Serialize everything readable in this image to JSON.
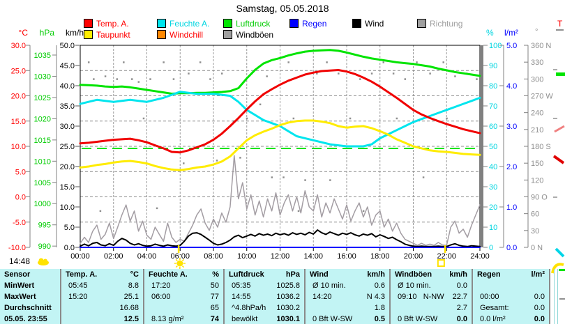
{
  "title": "Samstag, 05.05.2018",
  "footer": {
    "time": "14:48"
  },
  "legend": {
    "row1": [
      {
        "label": "Temp. A.",
        "box": "#ff0000",
        "text": "#ff0000"
      },
      {
        "label": "Feuchte A.",
        "box": "#00e5ee",
        "text": "#00d5e0"
      },
      {
        "label": "Luftdruck",
        "box": "#00e400",
        "text": "#00cc00"
      },
      {
        "label": "Regen",
        "box": "#0000ff",
        "text": "#0000ff"
      },
      {
        "label": "Wind",
        "box": "#000000",
        "text": "#000000"
      },
      {
        "label": "Richtung",
        "box": "#a0a0a0",
        "text": "#a0a0a0"
      }
    ],
    "row2": [
      {
        "label": "Taupunkt",
        "box": "#ffee00",
        "text": "#ff0000"
      },
      {
        "label": "Windchill",
        "box": "#ff8800",
        "text": "#ff0000"
      },
      {
        "label": "Windböen",
        "box": "#a0a0a0",
        "text": "#000000"
      }
    ]
  },
  "axes": {
    "temp": {
      "header": "°C",
      "color": "#ff0000",
      "range": [
        -10,
        30
      ],
      "tick_values": [
        30,
        25,
        20,
        15,
        10,
        5,
        0,
        -5,
        -10
      ],
      "ticks": [
        "30.0",
        "25.0",
        "20.0",
        "15.0",
        "10.0",
        "5.0",
        "0.0",
        "-5.0",
        "-10.0"
      ]
    },
    "pressure": {
      "header": "hPa",
      "color": "#00cc00",
      "range": [
        989.7,
        1037.3
      ],
      "tick_values": [
        1035,
        1030,
        1025,
        1020,
        1015,
        1010,
        1005,
        1000,
        995,
        990
      ],
      "ticks": [
        "1035",
        "1030",
        "1025",
        "1020",
        "1015",
        "1010",
        "1005",
        "1000",
        "995",
        "990"
      ]
    },
    "wind": {
      "header": "km/h",
      "color": "#000000",
      "range": [
        0,
        50
      ],
      "tick_values": [
        50,
        45,
        40,
        35,
        30,
        25,
        20,
        15,
        10,
        5,
        0
      ],
      "ticks": [
        "50.0",
        "45.0",
        "40.0",
        "35.0",
        "30.0",
        "25.0",
        "20.0",
        "15.0",
        "10.0",
        "5.0",
        "0.0"
      ]
    },
    "humidity": {
      "header": "%",
      "color": "#00d5e0",
      "range": [
        0,
        100
      ],
      "tick_values": [
        100,
        90,
        80,
        70,
        60,
        50,
        40,
        30,
        20,
        10,
        0
      ],
      "ticks": [
        "100",
        "90",
        "80",
        "70",
        "60",
        "50",
        "40",
        "30",
        "20",
        "10",
        "0"
      ]
    },
    "rain": {
      "header": "l/m²",
      "color": "#0000ff",
      "range": [
        0,
        5
      ],
      "tick_values": [
        5,
        4,
        3,
        2,
        1,
        0
      ],
      "ticks": [
        "5.0",
        "4.0",
        "3.0",
        "2.0",
        "1.0",
        "0.0"
      ]
    },
    "direction": {
      "header": "°",
      "color": "#8f8f8f",
      "range": [
        0,
        360
      ],
      "tick_values": [
        360,
        330,
        300,
        270,
        240,
        210,
        180,
        150,
        120,
        90,
        60,
        30,
        0
      ],
      "ticks": [
        "360 N",
        "330",
        "300",
        "270 W",
        "240",
        "210",
        "180 S",
        "150",
        "120",
        "90  O",
        "60",
        "30",
        "0  N"
      ]
    },
    "time": {
      "tick_values": [
        0,
        2,
        4,
        6,
        8,
        10,
        12,
        14,
        16,
        18,
        20,
        22,
        24
      ],
      "ticks": [
        "00:00",
        "02:00",
        "04:00",
        "06:00",
        "08:00",
        "10:00",
        "12:00",
        "14:00",
        "16:00",
        "18:00",
        "20:00",
        "22:00",
        "24:00"
      ]
    },
    "right_edge": {
      "label": "T",
      "color": "#ff0000"
    }
  },
  "chart_data": {
    "type": "line",
    "x_unit": "hour",
    "x_range": [
      0,
      24
    ],
    "grid": {
      "vertical_every_h": 2,
      "horizontal_temp_step": 5
    },
    "reference_line": {
      "axis": "pressure",
      "value": 1013,
      "color": "#00e400"
    },
    "markers": {
      "sunrise_hour": 5.9,
      "sunset_hour": 21.9
    },
    "series": [
      {
        "id": "windboeen",
        "label": "Windböen",
        "axis": "wind",
        "color": "#a39da3",
        "width": 1.5,
        "x_step": 0.25,
        "values": [
          1.0,
          2.5,
          1.2,
          4.0,
          5.5,
          2.0,
          3.2,
          6.0,
          2.2,
          5.0,
          8.0,
          10.5,
          6.5,
          9.0,
          4.0,
          6.5,
          3.0,
          2.0,
          5.0,
          3.2,
          1.5,
          6.0,
          2.5,
          1.2,
          2.0,
          1.5,
          3.5,
          5.5,
          8.0,
          9.5,
          6.0,
          4.2,
          7.0,
          5.0,
          8.5,
          6.2,
          10.0,
          22.7,
          12.0,
          16.0,
          9.5,
          13.0,
          8.0,
          11.5,
          7.5,
          12.0,
          9.0,
          13.5,
          8.0,
          11.0,
          13.0,
          9.0,
          12.5,
          8.5,
          14.0,
          10.0,
          9.0,
          13.0,
          7.5,
          11.0,
          8.5,
          12.0,
          9.5,
          7.0,
          10.5,
          6.5,
          9.0,
          11.0,
          7.5,
          10.0,
          5.5,
          8.0,
          9.0,
          5.0,
          7.0,
          4.0,
          6.0,
          3.5,
          2.0,
          1.5,
          1.0,
          0.5,
          1.0,
          0.5,
          0.8,
          0.5,
          1.2,
          0.6,
          0.5,
          5.0,
          6.5,
          3.5,
          4.5,
          2.5,
          5.5,
          8.0,
          10.5
        ]
      },
      {
        "id": "wind",
        "label": "Wind",
        "axis": "wind",
        "color": "#000000",
        "width": 2,
        "x_step": 0.25,
        "values": [
          0.3,
          0.8,
          0.4,
          1.0,
          1.2,
          0.6,
          0.4,
          0.9,
          0.5,
          1.5,
          2.2,
          1.8,
          1.0,
          0.6,
          0.9,
          0.5,
          0.3,
          0.4,
          0.8,
          0.5,
          0.3,
          0.6,
          0.4,
          0.3,
          0.5,
          1.5,
          2.8,
          3.5,
          3.6,
          3.2,
          2.5,
          1.8,
          1.0,
          0.6,
          0.8,
          1.2,
          1.8,
          2.6,
          3.0,
          2.4,
          2.8,
          3.2,
          2.8,
          3.4,
          3.0,
          3.3,
          2.9,
          3.5,
          3.1,
          3.4,
          3.0,
          3.6,
          3.2,
          3.5,
          3.1,
          3.7,
          3.3,
          4.3,
          3.6,
          3.2,
          3.8,
          3.4,
          3.0,
          3.5,
          3.2,
          3.6,
          3.1,
          2.8,
          3.3,
          3.0,
          3.4,
          2.6,
          3.1,
          2.7,
          2.2,
          2.5,
          1.9,
          1.4,
          0.8,
          0.5,
          0.3,
          0.2,
          0.3,
          0.2,
          0.2,
          0.2,
          0.3,
          0.2,
          0.2,
          0.6,
          0.9,
          0.5,
          0.3,
          0.2,
          0.4,
          0.3,
          0.2
        ]
      },
      {
        "id": "regen",
        "label": "Regen",
        "axis": "rain",
        "color": "#0000ff",
        "width": 2,
        "x_step": 24,
        "values": [
          0.0,
          0.0
        ]
      },
      {
        "id": "luftdruck",
        "label": "Luftdruck",
        "axis": "pressure",
        "color": "#00e400",
        "width": 3,
        "x_step": 0.5,
        "values": [
          1028.0,
          1027.9,
          1027.8,
          1027.6,
          1027.5,
          1027.6,
          1027.4,
          1027.1,
          1026.8,
          1026.5,
          1026.2,
          1025.9,
          1026.0,
          1026.0,
          1026.1,
          1026.1,
          1026.2,
          1026.3,
          1026.5,
          1027.2,
          1029.5,
          1031.5,
          1033.0,
          1033.8,
          1034.3,
          1034.9,
          1035.4,
          1035.8,
          1036.0,
          1036.1,
          1036.2,
          1036.0,
          1035.6,
          1035.1,
          1034.6,
          1034.2,
          1033.9,
          1033.6,
          1033.3,
          1033.1,
          1032.9,
          1032.6,
          1032.3,
          1031.8,
          1031.4,
          1031.0,
          1030.7,
          1030.4,
          1030.1
        ]
      },
      {
        "id": "feuchte",
        "label": "Feuchte A.",
        "axis": "humidity",
        "color": "#00e5ee",
        "width": 3,
        "x_step": 0.5,
        "values": [
          71,
          72,
          73,
          72.5,
          72,
          72.5,
          73,
          72.5,
          72,
          73,
          74,
          75.5,
          77,
          76.5,
          76,
          76,
          76,
          75.5,
          75,
          72,
          68,
          65.5,
          63,
          61.5,
          60,
          57.5,
          55,
          54,
          53,
          52,
          51,
          50.5,
          50,
          50,
          50,
          51,
          54,
          56,
          58,
          60,
          62,
          63.5,
          65,
          66.5,
          68,
          69.5,
          71,
          72.5,
          74
        ]
      },
      {
        "id": "temp",
        "label": "Temp. A.",
        "axis": "temp",
        "color": "#f00000",
        "width": 3,
        "x_step": 0.5,
        "values": [
          10.6,
          10.7,
          10.9,
          11.1,
          11.3,
          11.4,
          11.5,
          11.2,
          10.8,
          10.2,
          9.6,
          8.9,
          8.8,
          9.2,
          9.8,
          10.4,
          11.3,
          12.5,
          14.0,
          15.6,
          17.3,
          18.9,
          20.3,
          21.3,
          22.2,
          23.0,
          23.6,
          24.2,
          24.6,
          24.9,
          25.0,
          25.1,
          24.8,
          24.3,
          23.6,
          22.8,
          21.8,
          20.7,
          19.6,
          18.4,
          17.2,
          16.3,
          15.6,
          15.0,
          14.4,
          13.9,
          13.4,
          13.0,
          12.6
        ]
      },
      {
        "id": "taupunkt",
        "label": "Taupunkt",
        "axis": "temp",
        "color": "#ffec00",
        "width": 3,
        "x_step": 0.5,
        "values": [
          5.8,
          6.0,
          6.3,
          6.5,
          6.8,
          7.0,
          7.1,
          6.9,
          6.6,
          6.1,
          5.7,
          5.4,
          5.3,
          5.5,
          5.8,
          6.0,
          6.4,
          7.0,
          8.0,
          9.6,
          11.2,
          12.2,
          12.9,
          13.5,
          14.2,
          14.7,
          15.0,
          15.1,
          15.1,
          14.9,
          14.6,
          14.0,
          13.7,
          13.9,
          14.0,
          13.6,
          13.0,
          12.3,
          11.4,
          10.7,
          10.0,
          9.6,
          9.2,
          9.0,
          8.9,
          8.7,
          8.5,
          8.4,
          8.3
        ]
      }
    ],
    "direction_points": [
      [
        0.5,
        330
      ],
      [
        0.8,
        300
      ],
      [
        1.2,
        65
      ],
      [
        1.5,
        305
      ],
      [
        2.2,
        300
      ],
      [
        2.6,
        330
      ],
      [
        3.1,
        300
      ],
      [
        3.5,
        295
      ],
      [
        3.8,
        230
      ],
      [
        4.2,
        300
      ],
      [
        4.6,
        70
      ],
      [
        5.0,
        330
      ],
      [
        5.6,
        300
      ],
      [
        6.2,
        150
      ],
      [
        6.5,
        310
      ],
      [
        7.2,
        330
      ],
      [
        7.8,
        300
      ],
      [
        8.2,
        155
      ],
      [
        8.5,
        310
      ],
      [
        9.2,
        225
      ],
      [
        9.6,
        160
      ],
      [
        10.0,
        230
      ],
      [
        10.8,
        255
      ],
      [
        11.2,
        305
      ],
      [
        11.5,
        125
      ],
      [
        12.2,
        125
      ],
      [
        12.5,
        330
      ],
      [
        12.8,
        230
      ],
      [
        13.1,
        65
      ],
      [
        13.5,
        120
      ],
      [
        14.2,
        310
      ],
      [
        14.8,
        330
      ],
      [
        15.0,
        120
      ],
      [
        15.5,
        310
      ],
      [
        16.2,
        230
      ],
      [
        16.8,
        300
      ],
      [
        17.0,
        65
      ],
      [
        17.5,
        310
      ],
      [
        18.2,
        330
      ],
      [
        18.8,
        310
      ],
      [
        19.0,
        230
      ],
      [
        19.5,
        300
      ],
      [
        20.2,
        330
      ],
      [
        20.6,
        125
      ],
      [
        21.0,
        310
      ],
      [
        21.8,
        330
      ],
      [
        22.0,
        230
      ],
      [
        22.5,
        305
      ],
      [
        23.2,
        310
      ],
      [
        23.8,
        300
      ]
    ]
  },
  "table": {
    "row_labels": [
      "Sensor",
      "MinWert",
      "MaxWert",
      "Durchschnitt",
      "05.05. 23:55"
    ],
    "columns": [
      {
        "name": "Temp. A.",
        "unit": "°C",
        "rows": [
          [
            "05:45",
            "8.8"
          ],
          [
            "15:20",
            "25.1"
          ],
          [
            "",
            "16.68"
          ],
          [
            "",
            "12.5"
          ]
        ]
      },
      {
        "name": "Feuchte A.",
        "unit": "%",
        "rows": [
          [
            "17:20",
            "50"
          ],
          [
            "06:00",
            "77"
          ],
          [
            "",
            "65"
          ],
          [
            "8.13 g/m²",
            "74"
          ]
        ]
      },
      {
        "name": "Luftdruck",
        "unit": "hPa",
        "rows": [
          [
            "05:35",
            "1025.8"
          ],
          [
            "14:55",
            "1036.2"
          ],
          [
            "^4.8hPa/h",
            "1030.2"
          ],
          [
            "bewölkt",
            "1030.1"
          ]
        ]
      },
      {
        "name": "Wind",
        "unit": "km/h",
        "rows": [
          [
            "Ø 10 min.",
            "0.6"
          ],
          [
            "14:20",
            "N 4.3"
          ],
          [
            "",
            "1.8"
          ],
          [
            "0 Bft W-SW",
            "0.5"
          ]
        ]
      },
      {
        "name": "Windböen",
        "unit": "km/h",
        "rows": [
          [
            "Ø 10 min.",
            "0.0"
          ],
          [
            "09:10   N-NW",
            "22.7"
          ],
          [
            "",
            "2.7"
          ],
          [
            "0 Bft W-SW",
            "0.0"
          ]
        ]
      },
      {
        "name": "Regen",
        "unit": "l/m²",
        "rows": [
          [
            "",
            ""
          ],
          [
            "00:00",
            "0.0"
          ],
          [
            "Gesamt:",
            "0.0"
          ],
          [
            "0.0 l/m²",
            "0.0"
          ]
        ]
      }
    ]
  }
}
